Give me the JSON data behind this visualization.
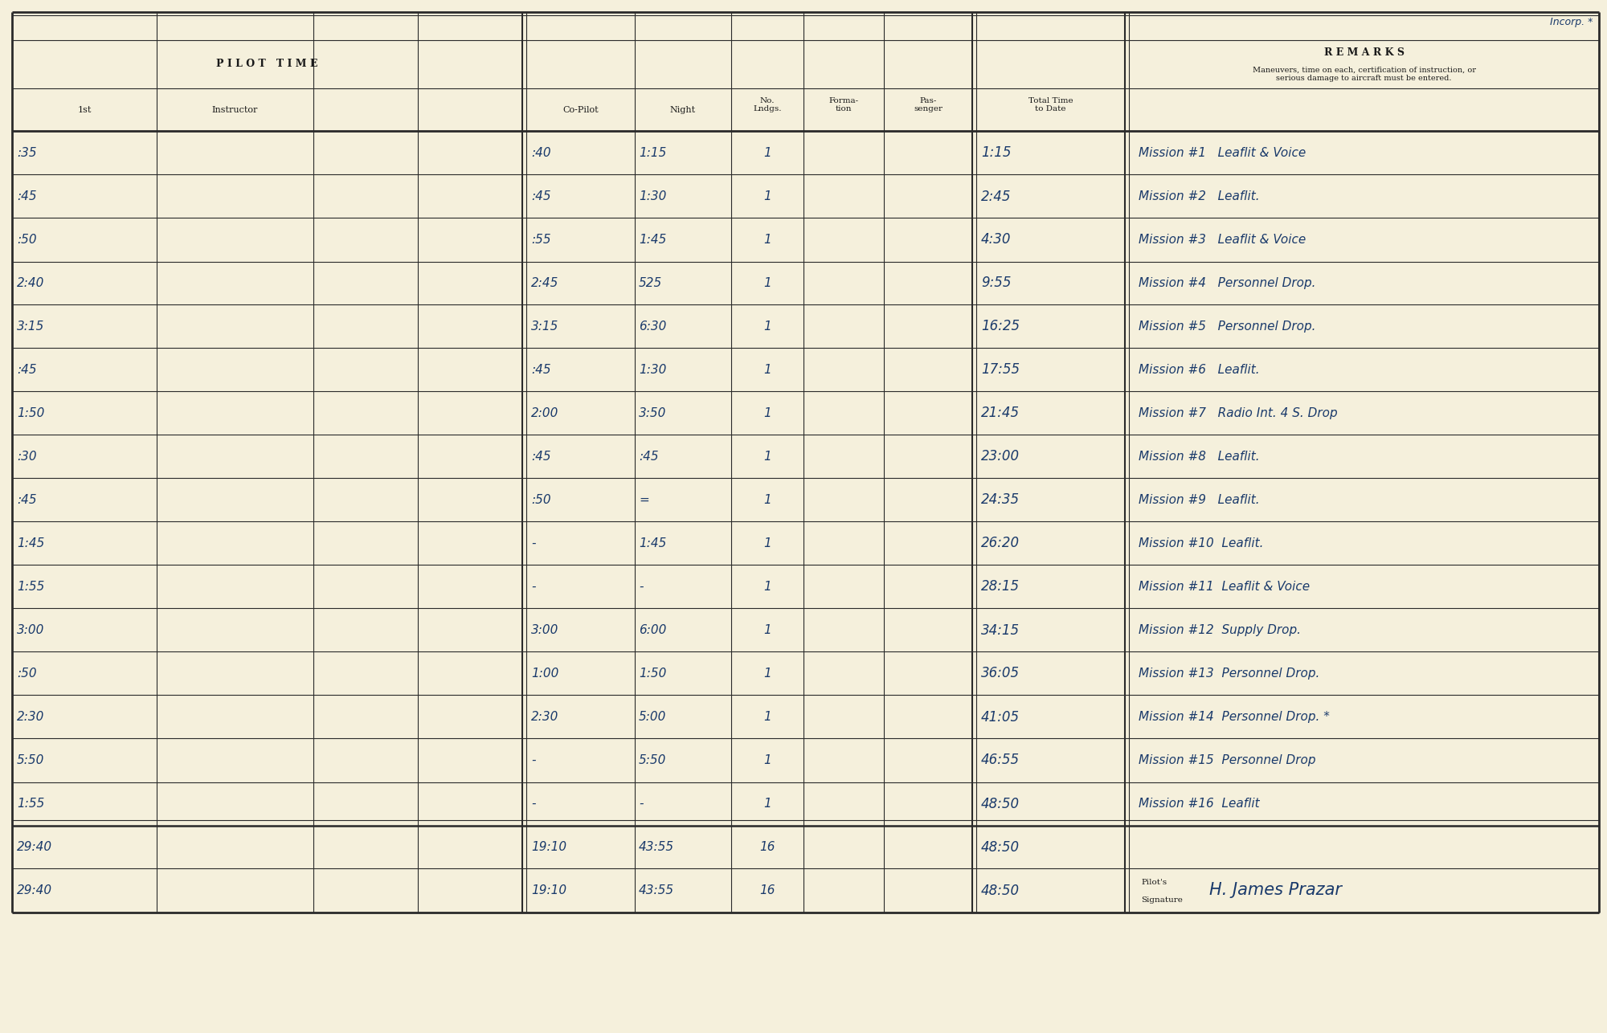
{
  "bg_color": "#f5f0dc",
  "line_color": "#2a2a2a",
  "handwriting_color": "#1a3a6b",
  "title_color": "#1a1a1a",
  "figsize": [
    20.0,
    12.86
  ],
  "dpi": 100,
  "stamp_text": "Incorp. *",
  "col1_vals": [
    ":35",
    ":45",
    ":50",
    "2:40",
    "3:15",
    ":45",
    "1:50",
    ":30",
    ":45",
    "1:45",
    "1:55",
    "3:00",
    ":50",
    "2:30",
    "5:50",
    "1:55",
    "29:40",
    "29:40"
  ],
  "copilot_v": [
    ":40",
    ":45",
    ":55",
    "2:45",
    "3:15",
    ":45",
    "2:00",
    ":45",
    ":50",
    "-",
    "-",
    "3:00",
    "1:00",
    "2:30",
    "-",
    "-",
    "19:10",
    "19:10"
  ],
  "night_v": [
    "1:15",
    "1:30",
    "1:45",
    "525",
    "6:30",
    "1:30",
    "3:50",
    ":45",
    "=",
    "1:45",
    "-",
    "6:00",
    "1:50",
    "5:00",
    "5:50",
    "-",
    "43:55",
    "43:55"
  ],
  "no_lndgs": [
    "1",
    "1",
    "1",
    "1",
    "1",
    "1",
    "1",
    "1",
    "1",
    "1",
    "1",
    "1",
    "1",
    "1",
    "1",
    "1",
    "16",
    "16"
  ],
  "total_v": [
    "1:15",
    "2:45",
    "4:30",
    "9:55",
    "16:25",
    "17:55",
    "21:45",
    "23:00",
    "24:35",
    "26:20",
    "28:15",
    "34:15",
    "36:05",
    "41:05",
    "46:55",
    "48:50",
    "48:50",
    "48:50"
  ],
  "remarks_list": [
    "Mission #1   Leaflit & Voice",
    "Mission #2   Leaflit.",
    "Mission #3   Leaflit & Voice",
    "Mission #4   Personnel Drop.",
    "Mission #5   Personnel Drop.",
    "Mission #6   Leaflit.",
    "Mission #7   Radio Int. 4 S. Drop",
    "Mission #8   Leaflit.",
    "Mission #9   Leaflit.",
    "Mission #10  Leaflit.",
    "Mission #11  Leaflit & Voice",
    "Mission #12  Supply Drop.",
    "Mission #13  Personnel Drop.",
    "Mission #14  Personnel Drop. *",
    "Mission #15  Personnel Drop",
    "Mission #16  Leaflit",
    "",
    ""
  ]
}
